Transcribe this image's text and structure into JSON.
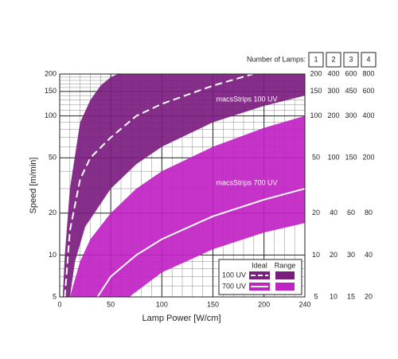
{
  "chart_data": {
    "type": "band",
    "x_label": "Lamp Power [W/cm]",
    "y_label": "Speed [m/min]",
    "xlim": [
      0,
      240
    ],
    "ylim": [
      5,
      200
    ],
    "log_y": true,
    "grid": true,
    "xticks": [
      0,
      50,
      100,
      150,
      200,
      240
    ],
    "yticks": [
      5,
      10,
      20,
      50,
      100,
      150,
      200
    ],
    "xminor": [
      10,
      20,
      30,
      40,
      60,
      70,
      80,
      90,
      110,
      120,
      130,
      140,
      160,
      170,
      180,
      190,
      210,
      220,
      230
    ],
    "yminor": [
      6,
      7,
      8,
      9,
      30,
      40,
      60,
      70,
      80,
      90,
      110,
      120,
      130,
      140,
      160,
      170,
      180,
      190
    ],
    "legend": {
      "ideal": "Ideal",
      "range": "Range"
    },
    "series": [
      {
        "name": "100 UV",
        "label": "macsStrips 100 UV",
        "color": "#7b1c80",
        "dashed": true,
        "ideal": {
          "x": [
            5,
            10,
            20,
            30,
            50,
            75,
            100,
            150,
            189
          ],
          "y": [
            5,
            15,
            35,
            50,
            70,
            100,
            122,
            165,
            200
          ]
        },
        "range_upper": {
          "x": [
            3,
            5,
            10,
            20,
            30,
            40,
            50,
            57
          ],
          "y": [
            5,
            10,
            30,
            90,
            130,
            165,
            190,
            200
          ]
        },
        "range_lower": {
          "x": [
            10,
            15,
            25,
            50,
            75,
            100,
            150,
            200,
            240
          ],
          "y": [
            5,
            9,
            16,
            30,
            45,
            60,
            90,
            118,
            140
          ]
        }
      },
      {
        "name": "700 UV",
        "label": "macsStrips 700 UV",
        "color": "#c022c4",
        "dashed": false,
        "ideal": {
          "x": [
            37,
            50,
            75,
            100,
            150,
            200,
            240
          ],
          "y": [
            5,
            7,
            10,
            13,
            19,
            25,
            30
          ]
        },
        "range_upper": {
          "x": [
            10,
            20,
            30,
            50,
            75,
            100,
            150,
            200,
            240
          ],
          "y": [
            5,
            9,
            13,
            20,
            30,
            40,
            60,
            82,
            100
          ]
        },
        "range_lower": {
          "x": [
            68,
            100,
            150,
            200,
            240
          ],
          "y": [
            5,
            7.5,
            11,
            14.5,
            17
          ]
        }
      }
    ]
  },
  "lamps_table": {
    "title": "Number of Lamps:",
    "columns": [
      "1",
      "2",
      "3",
      "4"
    ],
    "rows": [
      [
        200,
        400,
        600,
        800
      ],
      [
        150,
        300,
        450,
        600
      ],
      [
        100,
        200,
        300,
        400
      ],
      [
        50,
        100,
        150,
        200
      ],
      [
        20,
        40,
        60,
        80
      ],
      [
        10,
        20,
        30,
        40
      ],
      [
        5,
        10,
        15,
        20
      ]
    ]
  }
}
